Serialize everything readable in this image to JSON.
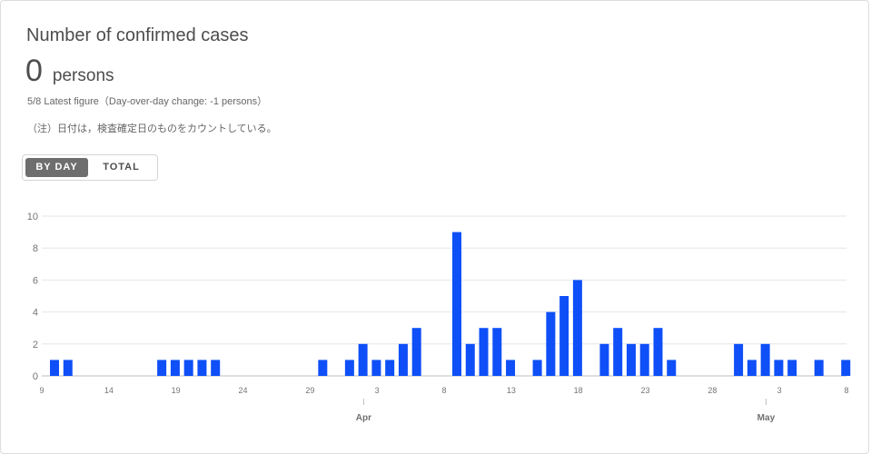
{
  "title": "Number of confirmed cases",
  "summary": {
    "value": "0",
    "unit": "persons"
  },
  "latest": "5/8 Latest figure（Day-over-day change: -1 persons）",
  "note": "（注）日付は，検査確定日のものをカウントしている。",
  "toggle": {
    "by_day": "BY DAY",
    "total": "TOTAL",
    "active": "by_day"
  },
  "colors": {
    "bar": "#0e4ff7",
    "toggle_active": "#6e6e6e"
  },
  "chart_data": {
    "type": "bar",
    "x": [
      "3/9",
      "3/10",
      "3/11",
      "3/12",
      "3/13",
      "3/14",
      "3/15",
      "3/16",
      "3/17",
      "3/18",
      "3/19",
      "3/20",
      "3/21",
      "3/22",
      "3/23",
      "3/24",
      "3/25",
      "3/26",
      "3/27",
      "3/28",
      "3/29",
      "3/30",
      "3/31",
      "4/1",
      "4/2",
      "4/3",
      "4/4",
      "4/5",
      "4/6",
      "4/7",
      "4/8",
      "4/9",
      "4/10",
      "4/11",
      "4/12",
      "4/13",
      "4/14",
      "4/15",
      "4/16",
      "4/17",
      "4/18",
      "4/19",
      "4/20",
      "4/21",
      "4/22",
      "4/23",
      "4/24",
      "4/25",
      "4/26",
      "4/27",
      "4/28",
      "4/29",
      "4/30",
      "5/1",
      "5/2",
      "5/3",
      "5/4",
      "5/5",
      "5/6",
      "5/7",
      "5/8"
    ],
    "values": [
      1,
      1,
      0,
      0,
      0,
      0,
      0,
      0,
      1,
      1,
      1,
      1,
      1,
      0,
      0,
      0,
      0,
      0,
      0,
      0,
      1,
      0,
      1,
      2,
      1,
      1,
      2,
      3,
      0,
      0,
      9,
      2,
      3,
      3,
      1,
      0,
      1,
      4,
      5,
      6,
      0,
      2,
      3,
      2,
      2,
      3,
      1,
      0,
      0,
      0,
      0,
      2,
      1,
      2,
      1,
      1,
      0,
      1,
      0,
      1,
      0
    ],
    "xticks": [
      "9",
      "14",
      "19",
      "24",
      "29",
      "3",
      "8",
      "13",
      "18",
      "23",
      "28",
      "3",
      "8"
    ],
    "months": [
      "Apr",
      "May"
    ],
    "ylim": [
      0,
      10
    ],
    "yticks": [
      0,
      2,
      4,
      6,
      8,
      10
    ],
    "grid": true,
    "legend": false
  }
}
